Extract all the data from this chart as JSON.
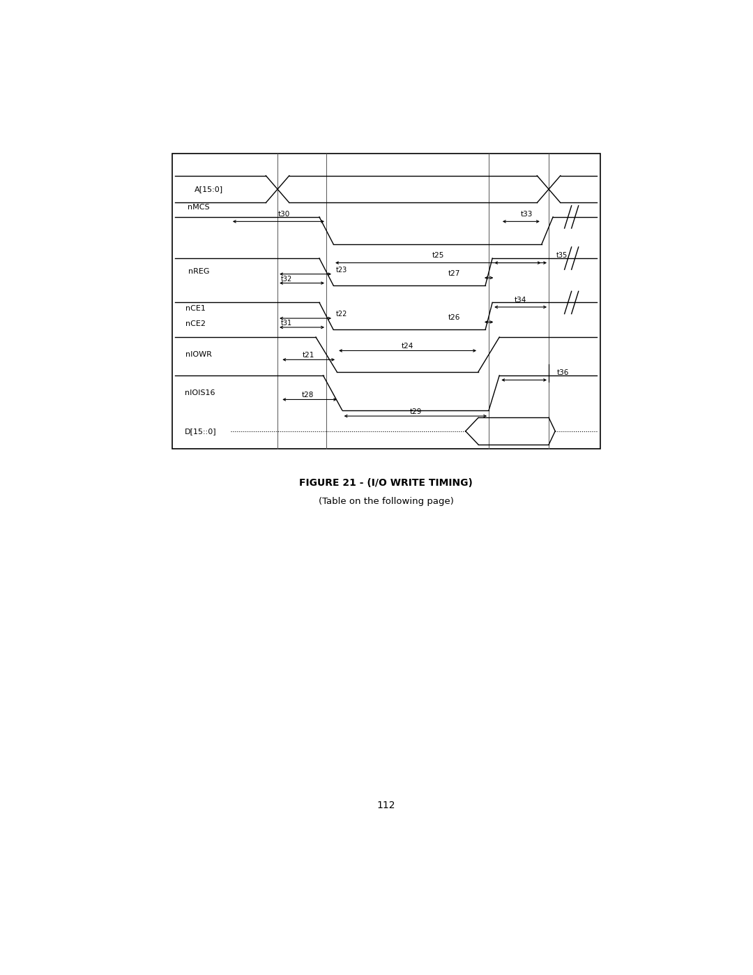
{
  "figure_width": 10.8,
  "figure_height": 13.97,
  "dpi": 100,
  "title_line1": "FIGURE 21 - (I/O WRITE TIMING)",
  "title_line2": "(Table on the following page)",
  "page_number": "112",
  "background_color": "#ffffff",
  "line_color": "#000000"
}
